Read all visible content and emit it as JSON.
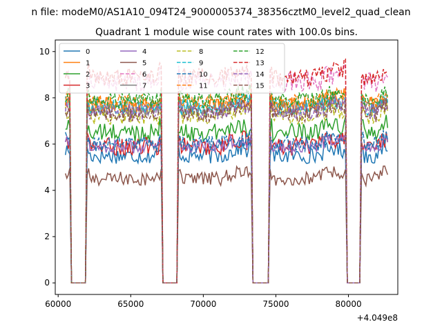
{
  "chart_data": {
    "type": "line",
    "suptitle": "n file: modeM0/AS1A10_094T24_9000005374_38356cztM0_level2_quad_clean",
    "title": "Quadrant 1 module wise count rates with 100.0s bins.",
    "xlabel": "",
    "ylabel": "",
    "offset_label": "+4.049e8",
    "xlim": [
      59800,
      83400
    ],
    "ylim": [
      -0.5,
      10.5
    ],
    "xticks": [
      60000,
      65000,
      70000,
      75000,
      80000
    ],
    "xtick_labels": [
      "60000",
      "65000",
      "70000",
      "75000",
      "80000"
    ],
    "yticks": [
      0,
      2,
      4,
      6,
      8,
      10
    ],
    "ytick_labels": [
      "0",
      "2",
      "4",
      "6",
      "8",
      "10"
    ],
    "legend_position": "top-left",
    "legend_columns": 4,
    "segments": [
      [
        60500,
        60800
      ],
      [
        62000,
        67100
      ],
      [
        68300,
        73300
      ],
      [
        74600,
        79800
      ],
      [
        80900,
        82700
      ]
    ],
    "gaps": [
      [
        60800,
        62000
      ],
      [
        67100,
        68300
      ],
      [
        73300,
        74600
      ],
      [
        79800,
        80900
      ]
    ],
    "series": [
      {
        "name": "0",
        "color": "#1f77b4",
        "dash": "solid",
        "level": 5.5,
        "noise": 0.35
      },
      {
        "name": "1",
        "color": "#ff7f0e",
        "dash": "solid",
        "level": 7.7,
        "noise": 0.35
      },
      {
        "name": "2",
        "color": "#2ca02c",
        "dash": "solid",
        "level": 6.5,
        "noise": 0.4
      },
      {
        "name": "3",
        "color": "#d62728",
        "dash": "solid",
        "level": 5.9,
        "noise": 0.4
      },
      {
        "name": "4",
        "color": "#9467bd",
        "dash": "solid",
        "level": 5.9,
        "noise": 0.3
      },
      {
        "name": "5",
        "color": "#8c564b",
        "dash": "solid",
        "level": 4.5,
        "noise": 0.3
      },
      {
        "name": "6",
        "color": "#e377c2",
        "dash": "dashed",
        "level": 8.7,
        "noise": 0.45
      },
      {
        "name": "7",
        "color": "#7f7f7f",
        "dash": "solid",
        "level": 7.5,
        "noise": 0.35
      },
      {
        "name": "8",
        "color": "#bcbd22",
        "dash": "dashed",
        "level": 7.2,
        "noise": 0.35
      },
      {
        "name": "9",
        "color": "#17becf",
        "dash": "dashed",
        "level": 7.6,
        "noise": 0.35
      },
      {
        "name": "10",
        "color": "#1f77b4",
        "dash": "dashed",
        "level": 6.0,
        "noise": 0.35
      },
      {
        "name": "11",
        "color": "#ff7f0e",
        "dash": "dashed",
        "level": 7.8,
        "noise": 0.35
      },
      {
        "name": "12",
        "color": "#2ca02c",
        "dash": "dashed",
        "level": 7.9,
        "noise": 0.35
      },
      {
        "name": "13",
        "color": "#d62728",
        "dash": "dashed",
        "level": 8.9,
        "noise": 0.4
      },
      {
        "name": "14",
        "color": "#9467bd",
        "dash": "dashed",
        "level": 7.4,
        "noise": 0.35
      },
      {
        "name": "15",
        "color": "#8c564b",
        "dash": "dashed",
        "level": 7.3,
        "noise": 0.35
      }
    ]
  }
}
